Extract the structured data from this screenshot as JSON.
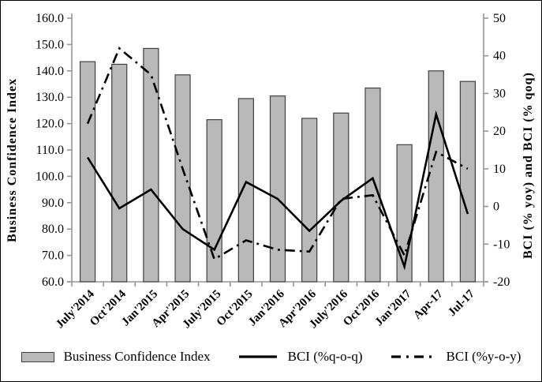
{
  "figure": {
    "background": "#ffffff",
    "border_color": "#000000"
  },
  "chart_data": {
    "type": "bar",
    "subtype": "combo bar + two lines, dual axis",
    "categories": [
      "July'2014",
      "Oct'2014",
      "Jan'2015",
      "Apr'2015",
      "July'2015",
      "Oct'2015",
      "Jan'2016",
      "Apr'2016",
      "July'2016",
      "Oct'2016",
      "Jan'2017",
      "Apr-17",
      "Jul-17"
    ],
    "series": [
      {
        "name": "Business Confidence Index",
        "type": "bar",
        "axis": "left",
        "values": [
          143.5,
          142.5,
          148.5,
          138.5,
          121.5,
          129.5,
          130.5,
          122,
          124,
          133.5,
          112,
          140,
          136
        ],
        "fill": "#b9b9b9",
        "stroke": "#404040"
      },
      {
        "name": "BCI (%q-o-q)",
        "type": "line",
        "style": "solid",
        "axis": "right",
        "values": [
          13,
          -0.5,
          4.5,
          -6,
          -11.5,
          6.5,
          2,
          -6.5,
          1.5,
          7.5,
          -16,
          24.5,
          -2
        ],
        "color": "#000000"
      },
      {
        "name": "BCI (%y-o-y)",
        "type": "line",
        "style": "dash-dot",
        "axis": "right",
        "values": [
          22,
          42,
          35,
          10,
          -14,
          -9,
          -11.5,
          -12,
          2,
          3,
          -13,
          14.5,
          10
        ],
        "color": "#000000"
      }
    ],
    "left_axis": {
      "label": "Business Confidence Index",
      "min": 60,
      "max": 160,
      "step": 10,
      "decimals": 1
    },
    "right_axis": {
      "label": "BCI (% yoy) and BCI (% qoq)",
      "min": -20,
      "max": 50,
      "step": 10,
      "decimals": 0
    },
    "x_axis": {
      "tick_label_rotation": -45
    },
    "grid": false,
    "legend_position": "bottom",
    "axis_color": "#969696"
  }
}
